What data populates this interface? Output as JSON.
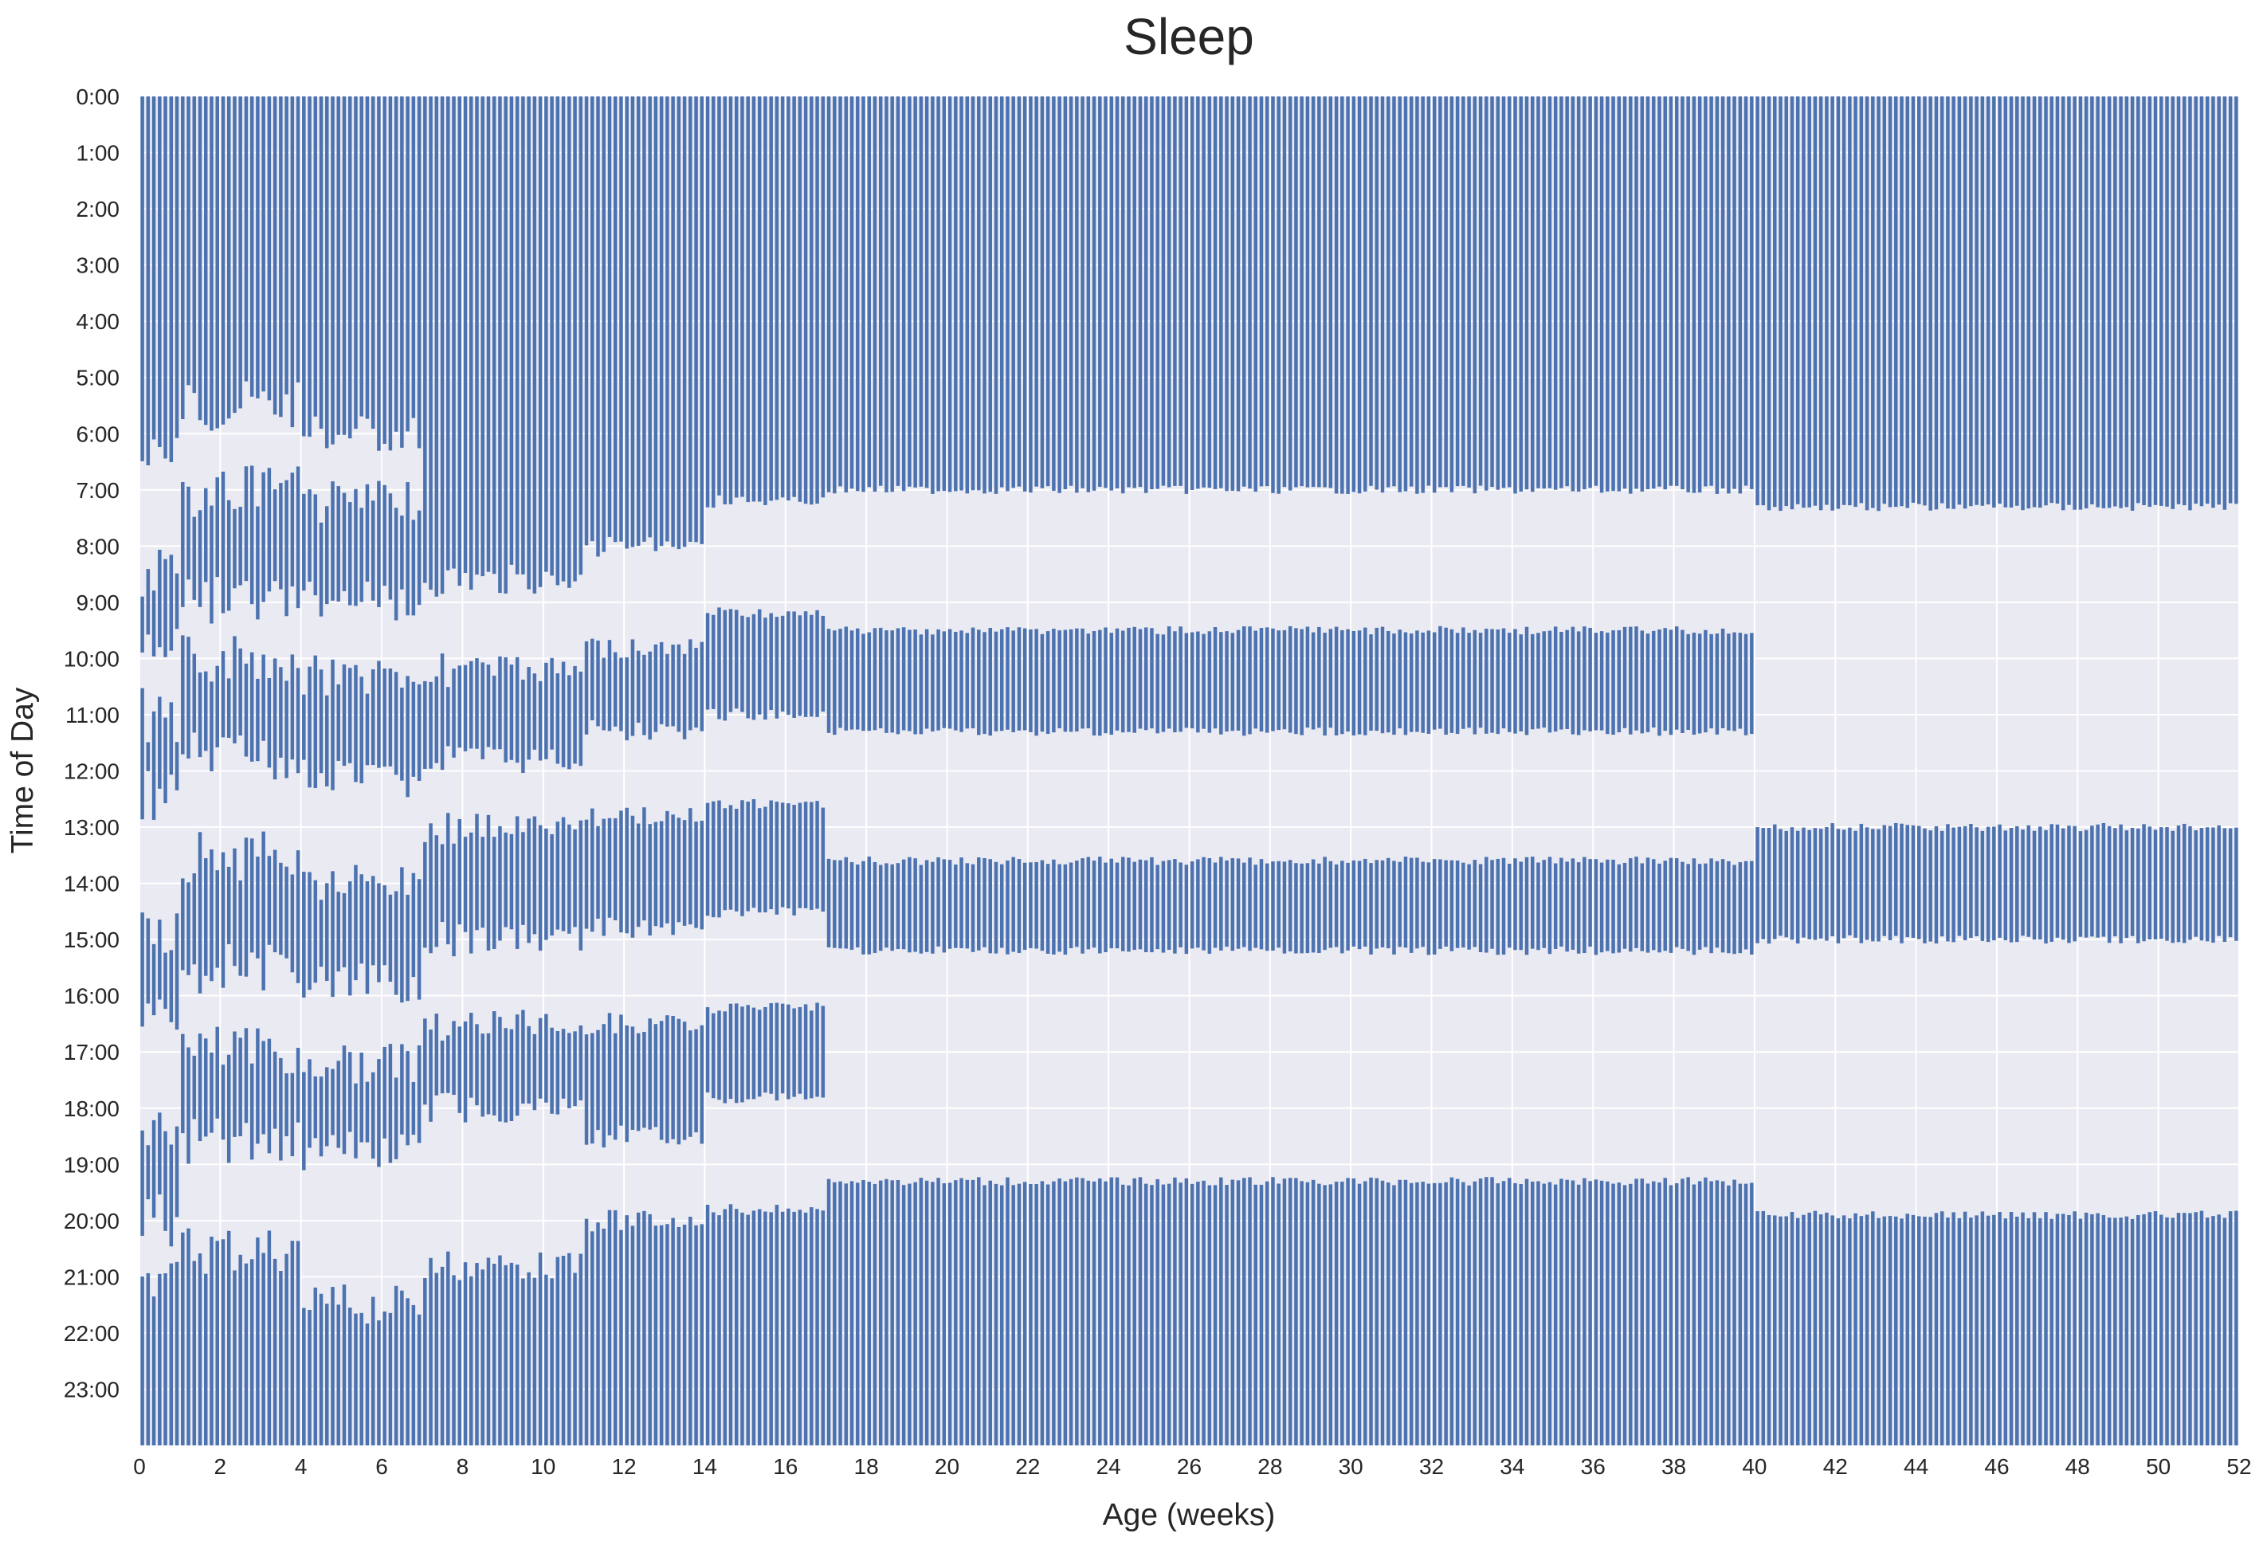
{
  "chart_data": {
    "type": "bar",
    "title": "Sleep",
    "xlabel": "Age (weeks)",
    "ylabel": "Time of Day",
    "xlim": [
      0,
      52
    ],
    "ylim": [
      0,
      24
    ],
    "y_inverted": true,
    "grid": true,
    "x_ticks": [
      "0",
      "2",
      "4",
      "6",
      "8",
      "10",
      "12",
      "14",
      "16",
      "18",
      "20",
      "22",
      "24",
      "26",
      "28",
      "30",
      "32",
      "34",
      "36",
      "38",
      "40",
      "42",
      "44",
      "46",
      "48",
      "50",
      "52"
    ],
    "y_ticks": [
      "0:00",
      "1:00",
      "2:00",
      "3:00",
      "4:00",
      "5:00",
      "6:00",
      "7:00",
      "8:00",
      "9:00",
      "10:00",
      "11:00",
      "12:00",
      "13:00",
      "14:00",
      "15:00",
      "16:00",
      "17:00",
      "18:00",
      "19:00",
      "20:00",
      "21:00",
      "22:00",
      "23:00"
    ],
    "colors": {
      "sleep": "#4c72b0",
      "background": "#eaeaf2",
      "grid": "#ffffff"
    },
    "series": [
      {
        "label_note": "sleep intervals by age in weeks; start/end in hours of day",
        "segments": [
          {
            "x": [
              0,
              1
            ],
            "start": 0,
            "end": 6.5
          },
          {
            "x": [
              0,
              1
            ],
            "start": 8.5,
            "end": 9.8
          },
          {
            "x": [
              0,
              1
            ],
            "start": 11.0,
            "end": 12.4
          },
          {
            "x": [
              0,
              1
            ],
            "start": 14.8,
            "end": 16.5
          },
          {
            "x": [
              0,
              1
            ],
            "start": 18.5,
            "end": 20.0
          },
          {
            "x": [
              0,
              1
            ],
            "start": 21.0,
            "end": 24.0
          },
          {
            "x": [
              1,
              4
            ],
            "start": 0,
            "end": 5.5
          },
          {
            "x": [
              1,
              4
            ],
            "start": 7.0,
            "end": 9.0
          },
          {
            "x": [
              1,
              4
            ],
            "start": 10.0,
            "end": 11.8
          },
          {
            "x": [
              1,
              4
            ],
            "start": 13.5,
            "end": 15.5
          },
          {
            "x": [
              1,
              4
            ],
            "start": 17.0,
            "end": 18.6
          },
          {
            "x": [
              1,
              4
            ],
            "start": 20.5,
            "end": 24.0
          },
          {
            "x": [
              4,
              7
            ],
            "start": 0,
            "end": 6.0
          },
          {
            "x": [
              4,
              7
            ],
            "start": 7.2,
            "end": 9.0
          },
          {
            "x": [
              4,
              7
            ],
            "start": 10.3,
            "end": 12.2
          },
          {
            "x": [
              4,
              7
            ],
            "start": 14.0,
            "end": 15.8
          },
          {
            "x": [
              4,
              7
            ],
            "start": 17.2,
            "end": 18.8
          },
          {
            "x": [
              4,
              7
            ],
            "start": 21.5,
            "end": 24.0
          },
          {
            "x": [
              7,
              11
            ],
            "start": 0,
            "end": 8.6
          },
          {
            "x": [
              7,
              11
            ],
            "start": 10.2,
            "end": 11.8
          },
          {
            "x": [
              7,
              11
            ],
            "start": 13.0,
            "end": 15.0
          },
          {
            "x": [
              7,
              11
            ],
            "start": 16.5,
            "end": 18.0
          },
          {
            "x": [
              7,
              11
            ],
            "start": 20.8,
            "end": 24.0
          },
          {
            "x": [
              11,
              14
            ],
            "start": 0,
            "end": 8.0
          },
          {
            "x": [
              11,
              14
            ],
            "start": 9.8,
            "end": 11.3
          },
          {
            "x": [
              11,
              14
            ],
            "start": 12.8,
            "end": 14.8
          },
          {
            "x": [
              11,
              14
            ],
            "start": 16.5,
            "end": 18.5
          },
          {
            "x": [
              11,
              14
            ],
            "start": 20.0,
            "end": 24.0
          },
          {
            "x": [
              14,
              17
            ],
            "start": 0,
            "end": 7.2
          },
          {
            "x": [
              14,
              17
            ],
            "start": 9.2,
            "end": 11.0
          },
          {
            "x": [
              14,
              17
            ],
            "start": 12.6,
            "end": 14.5
          },
          {
            "x": [
              14,
              17
            ],
            "start": 16.2,
            "end": 17.8
          },
          {
            "x": [
              14,
              17
            ],
            "start": 19.8,
            "end": 24.0
          },
          {
            "x": [
              17,
              40
            ],
            "start": 0,
            "end": 7.0
          },
          {
            "x": [
              17,
              40
            ],
            "start": 9.5,
            "end": 11.3
          },
          {
            "x": [
              17,
              40
            ],
            "start": 13.6,
            "end": 15.2
          },
          {
            "x": [
              17,
              40
            ],
            "start": 19.3,
            "end": 24.0
          },
          {
            "x": [
              40,
              52
            ],
            "start": 0,
            "end": 7.3
          },
          {
            "x": [
              40,
              52
            ],
            "start": 13.0,
            "end": 15.0
          },
          {
            "x": [
              40,
              52
            ],
            "start": 19.9,
            "end": 24.0
          }
        ]
      }
    ]
  }
}
